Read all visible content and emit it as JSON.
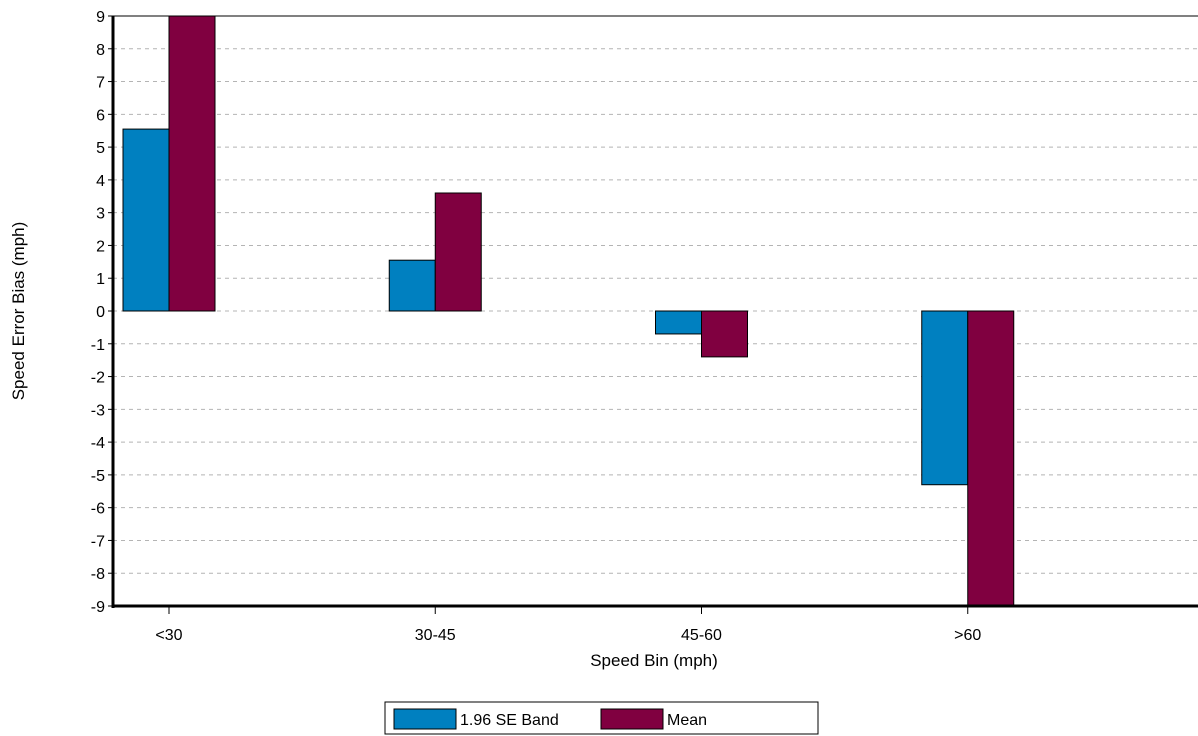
{
  "chart_data": {
    "type": "bar",
    "title": "",
    "xlabel": "Speed Bin (mph)",
    "ylabel": "Speed Error Bias (mph)",
    "categories": [
      "<30",
      "30-45",
      "45-60",
      ">60"
    ],
    "series": [
      {
        "name": "1.96 SE Band",
        "color": "#0080C0",
        "values": [
          5.55,
          1.55,
          -0.7,
          -5.3
        ]
      },
      {
        "name": "Mean",
        "color": "#800040",
        "values": [
          9.1,
          3.6,
          -1.4,
          -9.1
        ]
      }
    ],
    "ylim": [
      -9,
      9
    ],
    "yticks": [
      "9",
      "8",
      "7",
      "6",
      "5",
      "4",
      "3",
      "2",
      "1",
      "0",
      "-1",
      "-2",
      "-3",
      "-4",
      "-5",
      "-6",
      "-7",
      "-8",
      "-9"
    ],
    "grid": true,
    "legend_position": "bottom-center"
  }
}
